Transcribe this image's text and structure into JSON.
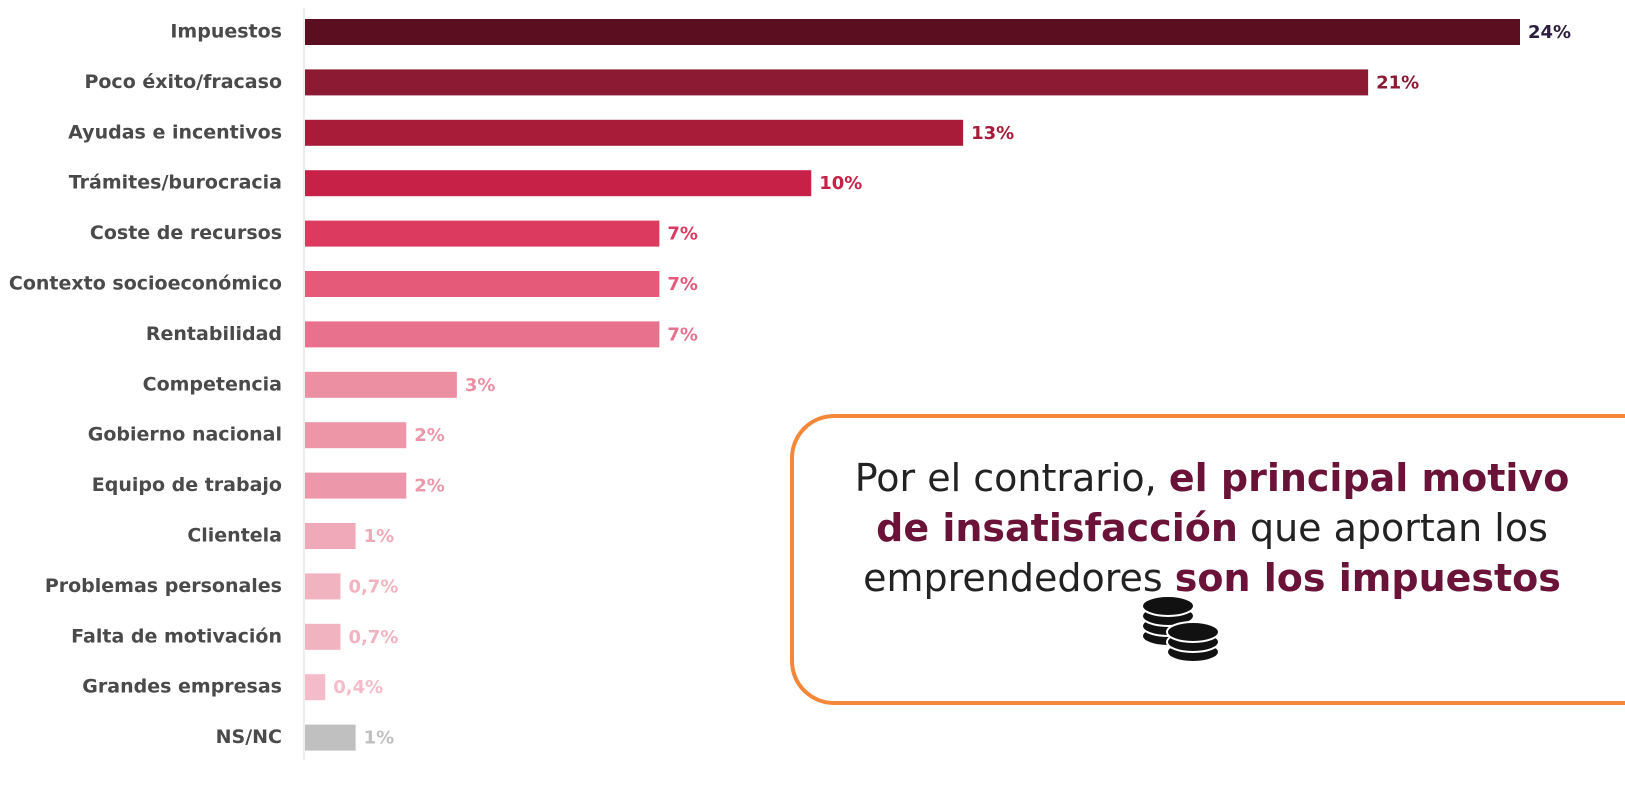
{
  "chart_data": {
    "type": "bar",
    "orientation": "horizontal",
    "categories": [
      "Impuestos",
      "Poco éxito/fracaso",
      "Ayudas e incentivos",
      "Trámites/burocracia",
      "Coste de recursos",
      "Contexto socioeconómico",
      "Rentabilidad",
      "Competencia",
      "Gobierno nacional",
      "Equipo de trabajo",
      "Clientela",
      "Problemas personales",
      "Falta de motivación",
      "Grandes empresas",
      "NS/NC"
    ],
    "values": [
      24,
      21,
      13,
      10,
      7,
      7,
      7,
      3,
      2,
      2,
      1,
      0.7,
      0.7,
      0.4,
      1
    ],
    "value_labels": [
      "24%",
      "21%",
      "13%",
      "10%",
      "7%",
      "7%",
      "7%",
      "3%",
      "2%",
      "2%",
      "1%",
      "0,7%",
      "0,7%",
      "0,4%",
      "1%"
    ],
    "colors": [
      "#5a0e20",
      "#8c1a33",
      "#a81c3a",
      "#c82147",
      "#dc3a5f",
      "#e45a78",
      "#e8728e",
      "#ec8fa3",
      "#ec96a8",
      "#ed98aa",
      "#f0a9b9",
      "#f2b3c1",
      "#f2b3c1",
      "#f4bccb",
      "#c0c0c0"
    ]
  },
  "callout": {
    "lines": [
      [
        {
          "text": "Por el contrario, ",
          "bold": false
        },
        {
          "text": "el principal motivo",
          "bold": true
        }
      ],
      [
        {
          "text": "de insatisfacción",
          "bold": true
        },
        {
          "text": " que aportan los",
          "bold": false
        }
      ],
      [
        {
          "text": "emprendedores ",
          "bold": false
        },
        {
          "text": "son los impuestos",
          "bold": true
        }
      ]
    ]
  }
}
